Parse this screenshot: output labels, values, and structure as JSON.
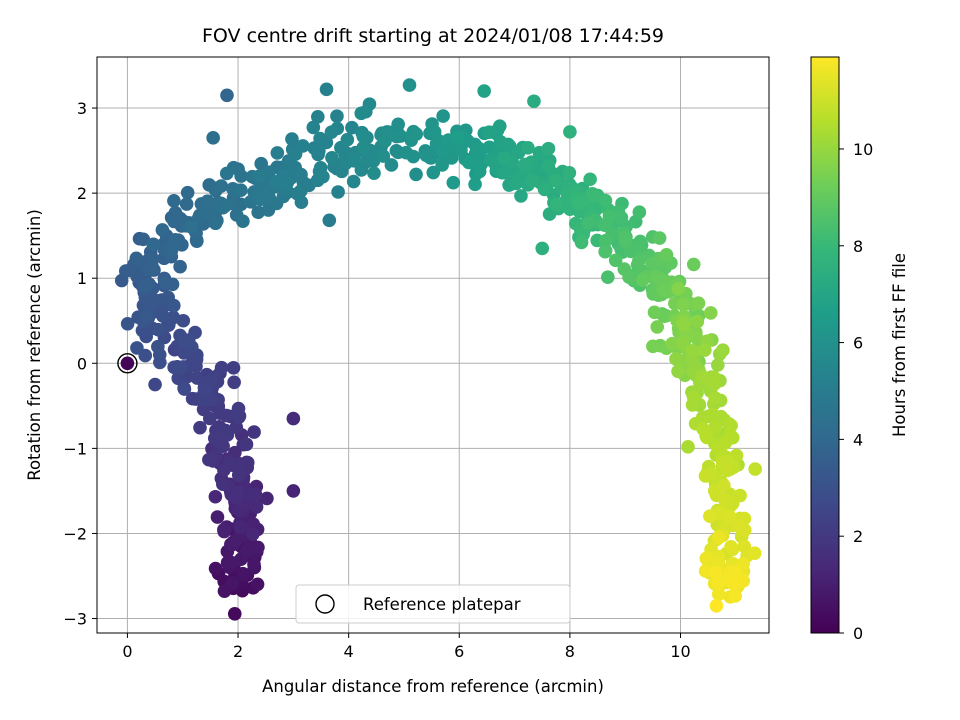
{
  "chart_data": {
    "type": "scatter",
    "title": "FOV centre drift starting at 2024/01/08 17:44:59",
    "xlabel": "Angular distance from reference (arcmin)",
    "ylabel": "Rotation from reference (arcmin)",
    "xlim": [
      -0.55,
      11.6
    ],
    "ylim": [
      -3.17,
      3.6
    ],
    "xticks": [
      0,
      2,
      4,
      6,
      8,
      10
    ],
    "yticks": [
      -3,
      -2,
      -1,
      0,
      1,
      2,
      3
    ],
    "grid": true,
    "colormap": "viridis",
    "legend": {
      "placement": "bottom-center",
      "entries": [
        "Reference platepar"
      ]
    },
    "reference_point": {
      "x": 0,
      "y": 0
    },
    "colorbar": {
      "label": "Hours from first FF file",
      "range": [
        0,
        11.9
      ],
      "ticks": [
        0,
        2,
        4,
        6,
        8,
        10
      ]
    },
    "drift_path": [
      {
        "hours": 0.3,
        "x": 1.95,
        "y": -2.7
      },
      {
        "hours": 0.8,
        "x": 2.0,
        "y": -2.2
      },
      {
        "hours": 1.3,
        "x": 2.1,
        "y": -1.6
      },
      {
        "hours": 1.8,
        "x": 1.9,
        "y": -1.0
      },
      {
        "hours": 2.2,
        "x": 1.6,
        "y": -0.4
      },
      {
        "hours": 2.6,
        "x": 1.0,
        "y": 0.0
      },
      {
        "hours": 3.0,
        "x": 0.5,
        "y": 0.5
      },
      {
        "hours": 3.5,
        "x": 0.3,
        "y": 1.1
      },
      {
        "hours": 4.0,
        "x": 1.0,
        "y": 1.6
      },
      {
        "hours": 4.6,
        "x": 2.2,
        "y": 2.0
      },
      {
        "hours": 5.3,
        "x": 3.5,
        "y": 2.45
      },
      {
        "hours": 6.0,
        "x": 5.2,
        "y": 2.65
      },
      {
        "hours": 6.8,
        "x": 6.8,
        "y": 2.4
      },
      {
        "hours": 7.6,
        "x": 8.0,
        "y": 2.0
      },
      {
        "hours": 8.4,
        "x": 9.0,
        "y": 1.4
      },
      {
        "hours": 9.2,
        "x": 9.9,
        "y": 0.8
      },
      {
        "hours": 10.0,
        "x": 10.4,
        "y": 0.0
      },
      {
        "hours": 10.6,
        "x": 10.7,
        "y": -1.0
      },
      {
        "hours": 11.2,
        "x": 10.8,
        "y": -2.0
      },
      {
        "hours": 11.8,
        "x": 10.85,
        "y": -2.7
      }
    ],
    "outliers": [
      {
        "x": 1.8,
        "y": 3.15,
        "hours": 3.9
      },
      {
        "x": 3.6,
        "y": 3.22,
        "hours": 5.2
      },
      {
        "x": 5.1,
        "y": 3.27,
        "hours": 6.0
      },
      {
        "x": 6.45,
        "y": 3.2,
        "hours": 6.8
      },
      {
        "x": 7.35,
        "y": 3.08,
        "hours": 7.3
      },
      {
        "x": 3.65,
        "y": 1.68,
        "hours": 5.0
      },
      {
        "x": 7.5,
        "y": 1.35,
        "hours": 7.5
      },
      {
        "x": 9.5,
        "y": 0.2,
        "hours": 9.4
      },
      {
        "x": 3.0,
        "y": -0.65,
        "hours": 1.5
      },
      {
        "x": 3.0,
        "y": -1.5,
        "hours": 1.2
      },
      {
        "x": 0.5,
        "y": -0.25,
        "hours": 2.6
      },
      {
        "x": 1.55,
        "y": 2.65,
        "hours": 4.3
      },
      {
        "x": 10.65,
        "y": -2.85,
        "hours": 11.9
      },
      {
        "x": 8.0,
        "y": 2.72,
        "hours": 7.6
      }
    ],
    "scatter_count": 900
  }
}
